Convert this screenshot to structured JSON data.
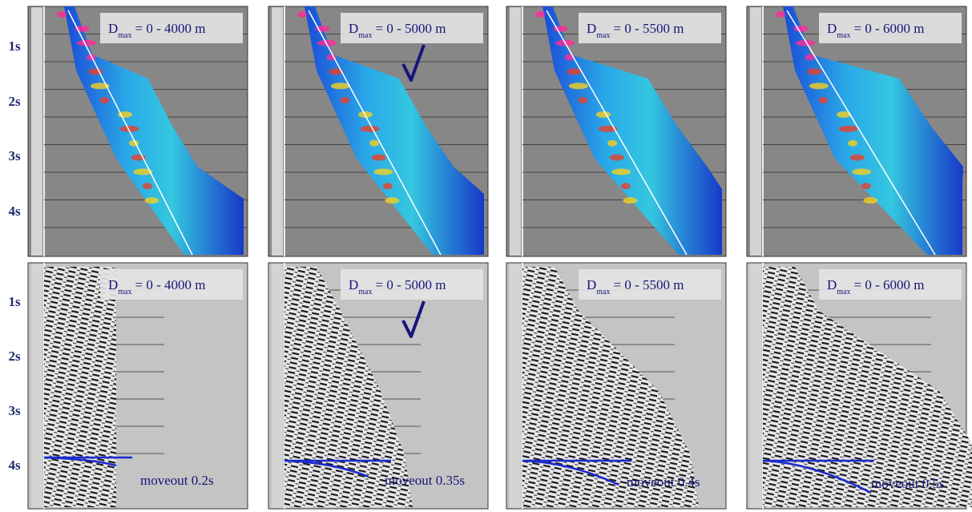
{
  "time_axis": {
    "top": [
      "1s",
      "2s",
      "3s",
      "4s"
    ],
    "bottom": [
      "1s",
      "2s",
      "3s",
      "4s"
    ]
  },
  "top_row": [
    {
      "label": {
        "symbol": "D",
        "subscript": "max",
        "text": "= 0 - 4000 m"
      }
    },
    {
      "label": {
        "symbol": "D",
        "subscript": "max",
        "text": "= 0 - 5000 m"
      }
    },
    {
      "label": {
        "symbol": "D",
        "subscript": "max",
        "text": "= 0 - 5500 m"
      }
    },
    {
      "label": {
        "symbol": "D",
        "subscript": "max",
        "text": "= 0 - 6000 m"
      }
    }
  ],
  "bottom_row": [
    {
      "label": {
        "symbol": "D",
        "subscript": "max",
        "text": "= 0 - 4000 m"
      },
      "moveout": "moveout 0.2s"
    },
    {
      "label": {
        "symbol": "D",
        "subscript": "max",
        "text": "= 0 - 5000 m"
      },
      "moveout": "moveout 0.35s"
    },
    {
      "label": {
        "symbol": "D",
        "subscript": "max",
        "text": "= 0 - 5500 m"
      },
      "moveout": "moveout 0.4s"
    },
    {
      "label": {
        "symbol": "D",
        "subscript": "max",
        "text": "= 0 - 6000 m"
      },
      "moveout": "moveout 0.5s"
    }
  ]
}
